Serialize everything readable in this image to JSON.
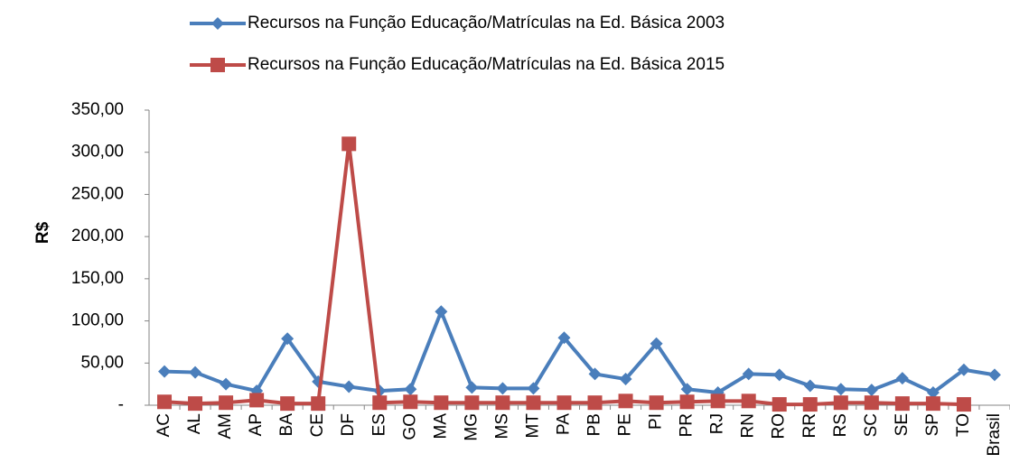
{
  "chart_data": {
    "type": "line",
    "y_label": "R$",
    "categories": [
      "AC",
      "AL",
      "AM",
      "AP",
      "BA",
      "CE",
      "DF",
      "ES",
      "GO",
      "MA",
      "MG",
      "MS",
      "MT",
      "PA",
      "PB",
      "PE",
      "PI",
      "PR",
      "RJ",
      "RN",
      "RO",
      "RR",
      "RS",
      "SC",
      "SE",
      "SP",
      "TO",
      "Brasil"
    ],
    "series": [
      {
        "name": "Recursos na Função Educação/Matrículas na Ed. Básica 2003",
        "color": "#4a7ebb",
        "marker": "diamond",
        "values": [
          40,
          39,
          25,
          17,
          79,
          28,
          22,
          17,
          19,
          111,
          21,
          20,
          20,
          80,
          37,
          31,
          73,
          19,
          15,
          37,
          36,
          23,
          19,
          18,
          32,
          15,
          42,
          36
        ]
      },
      {
        "name": "Recursos na Função Educação/Matrículas na Ed. Básica 2015",
        "color": "#be4b48",
        "marker": "square",
        "values": [
          4,
          2,
          3,
          6,
          2,
          2,
          310,
          3,
          4,
          3,
          3,
          3,
          3,
          3,
          3,
          5,
          3,
          4,
          5,
          5,
          1,
          1,
          3,
          3,
          2,
          2,
          1,
          null
        ]
      }
    ],
    "ylim": [
      0,
      350
    ],
    "yticks": [
      {
        "value": 0,
        "label": "-"
      },
      {
        "value": 50,
        "label": "50,00"
      },
      {
        "value": 100,
        "label": "100,00"
      },
      {
        "value": 150,
        "label": "150,00"
      },
      {
        "value": 200,
        "label": "200,00"
      },
      {
        "value": 250,
        "label": "250,00"
      },
      {
        "value": 300,
        "label": "300,00"
      },
      {
        "value": 350,
        "label": "350,00"
      }
    ],
    "grid": false,
    "legend": "top"
  }
}
